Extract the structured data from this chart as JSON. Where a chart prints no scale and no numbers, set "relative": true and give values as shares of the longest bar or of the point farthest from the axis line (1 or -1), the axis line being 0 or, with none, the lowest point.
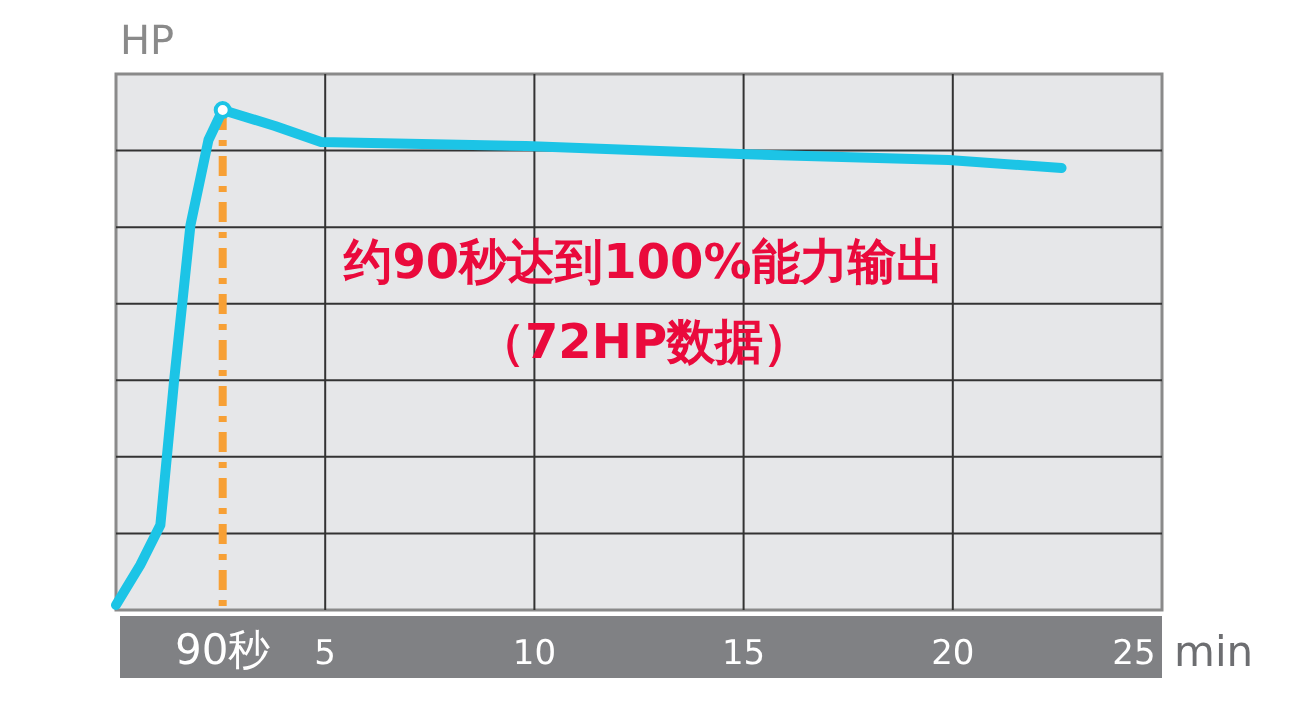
{
  "chart_data": {
    "type": "line",
    "relative": true,
    "ylabel": "HP",
    "xlabel": "min",
    "xlim": [
      0,
      25
    ],
    "xticks": [
      5,
      10,
      15,
      20,
      25
    ],
    "grid": true,
    "line_style": "solid",
    "series": [
      {
        "color": "#1cc4e6",
        "marker": "none",
        "x": [
          0,
          0.58,
          1.06,
          1.39,
          1.78,
          2.21,
          2.55,
          3.8,
          4.9,
          9.8,
          14.9,
          19.9,
          22.6
        ],
        "values": [
          0.01,
          0.09,
          0.17,
          0.46,
          0.77,
          0.94,
          1,
          0.968,
          0.936,
          0.928,
          0.912,
          0.9,
          0.884
        ]
      },
      {
        "type": "scatter",
        "color": "#1cc4e6",
        "marker": "circle",
        "x": [
          2.55
        ],
        "values": [
          1
        ]
      }
    ],
    "ref_lines": [
      {
        "axis": "x",
        "value": 2.55,
        "label": null,
        "color": "#f7a035",
        "line_style": "dashdot"
      }
    ],
    "annotations": [
      "约90秒达到100%能力输出",
      "（72HP数据）",
      {
        "text": "90秒",
        "x": 2.55,
        "y": 0
      }
    ]
  }
}
